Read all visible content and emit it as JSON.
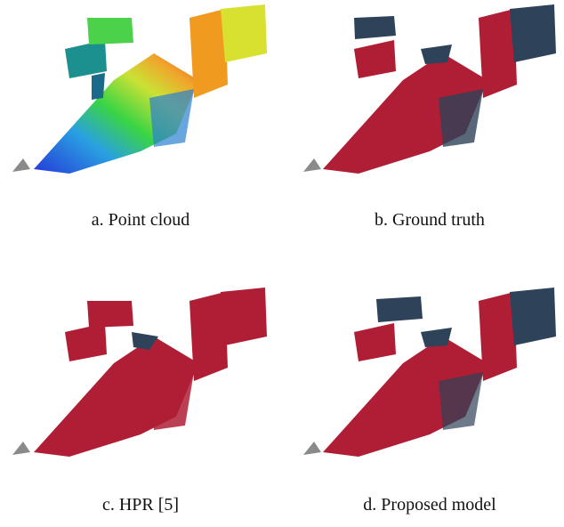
{
  "figure": {
    "panels": [
      {
        "id": "a",
        "caption": "a. Point cloud",
        "style": "height-colormap"
      },
      {
        "id": "b",
        "caption": "b. Ground truth",
        "style": "visibility-labels"
      },
      {
        "id": "c",
        "caption": "c. HPR [5]",
        "style": "all-visible"
      },
      {
        "id": "d",
        "caption": "d. Proposed model",
        "style": "visibility-labels"
      }
    ],
    "colors": {
      "visible": "#b01e35",
      "occluded": "#2e4259",
      "sensor": "#8a8a8a",
      "colormap": [
        "#1a2fd6",
        "#1e9be0",
        "#2fd23a",
        "#c8e02a",
        "#f0a020",
        "#e04018"
      ]
    }
  }
}
